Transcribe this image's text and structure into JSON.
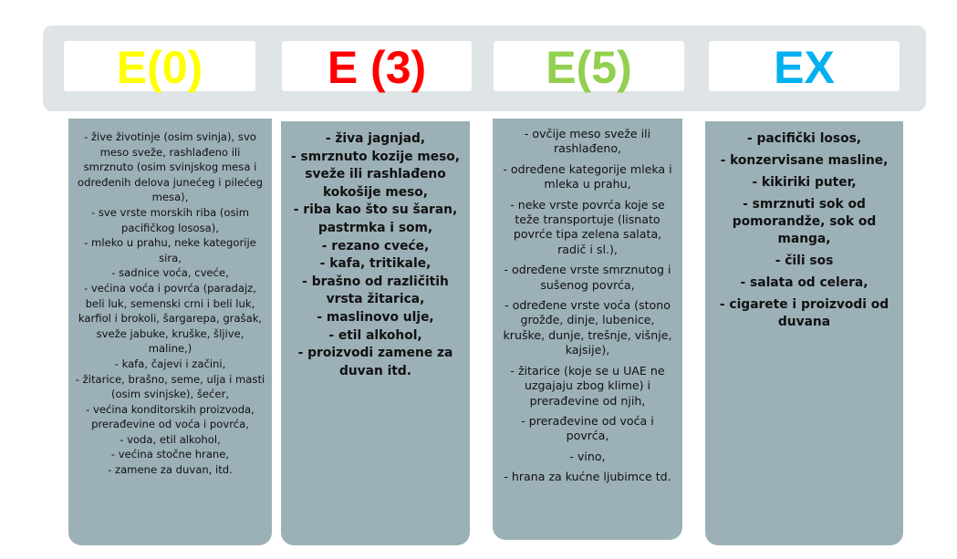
{
  "headers": [
    {
      "label": "E(0)",
      "color": "#ffff00"
    },
    {
      "label": "E (3)",
      "color": "#ff0000"
    },
    {
      "label": "E(5)",
      "color": "#92d050"
    },
    {
      "label": "EX",
      "color": "#00b0f0"
    }
  ],
  "columns": [
    {
      "items": [
        "- žive životinje (osim svinja), svo meso sveže, rashlađeno ili smrznuto (osim svinjskog mesa i određenih delova junećeg i pilećeg mesa),",
        "- sve vrste morskih riba (osim pacifičkog lososa),",
        "- mleko u prahu, neke kategorije sira,",
        "- sadnice voća, cveće,",
        "- većina voća i povrća (paradajz, beli luk, semenski crni i beli luk, karfiol i brokoli, šargarepa, grašak, sveže jabuke, kruške, šljive, maline,)",
        "- kafa, čajevi i začini,",
        "- žitarice, brašno, seme, ulja i masti (osim svinjske), šećer,",
        "- većina konditorskih proizvoda, prerađevine od voća i povrća,",
        "- voda, etil alkohol,",
        "- većina stočne hrane,",
        "- zamene za duvan, itd."
      ]
    },
    {
      "items": [
        "- živa jagnjad,",
        "- smrznuto kozije meso, sveže ili rashlađeno kokošije meso,",
        "- riba kao što su šaran, pastrmka i som,",
        "- rezano cveće,",
        "- kafa, tritikale,",
        "- brašno od različitih vrsta žitarica,",
        "- maslinovo ulje,",
        "- etil alkohol,",
        "- proizvodi zamene za duvan itd."
      ]
    },
    {
      "items": [
        "- ovčije meso sveže ili rashlađeno,",
        "- određene kategorije mleka i mleka u prahu,",
        "- neke vrste povrća koje se teže transportuje (lisnato povrće tipa zelena salata, radič i sl.),",
        "- određene vrste smrznutog i sušenog povrća,",
        "- određene vrste voća (stono grožđe, dinje, lubenice, kruške, dunje, trešnje, višnje, kajsije),",
        "- žitarice (koje se u UAE ne uzgajaju zbog klime) i prerađevine od njih,",
        "- prerađevine od voća i povrća,",
        "- vino,",
        "- hrana za kućne ljubimce td."
      ]
    },
    {
      "items": [
        "- pacifički losos,",
        "- konzervisane masline,",
        "- kikiriki puter,",
        "- smrznuti sok od pomorandže, sok od manga,",
        "- čili sos",
        "- salata od celera,",
        "- cigarete i proizvodi od duvana"
      ]
    }
  ]
}
